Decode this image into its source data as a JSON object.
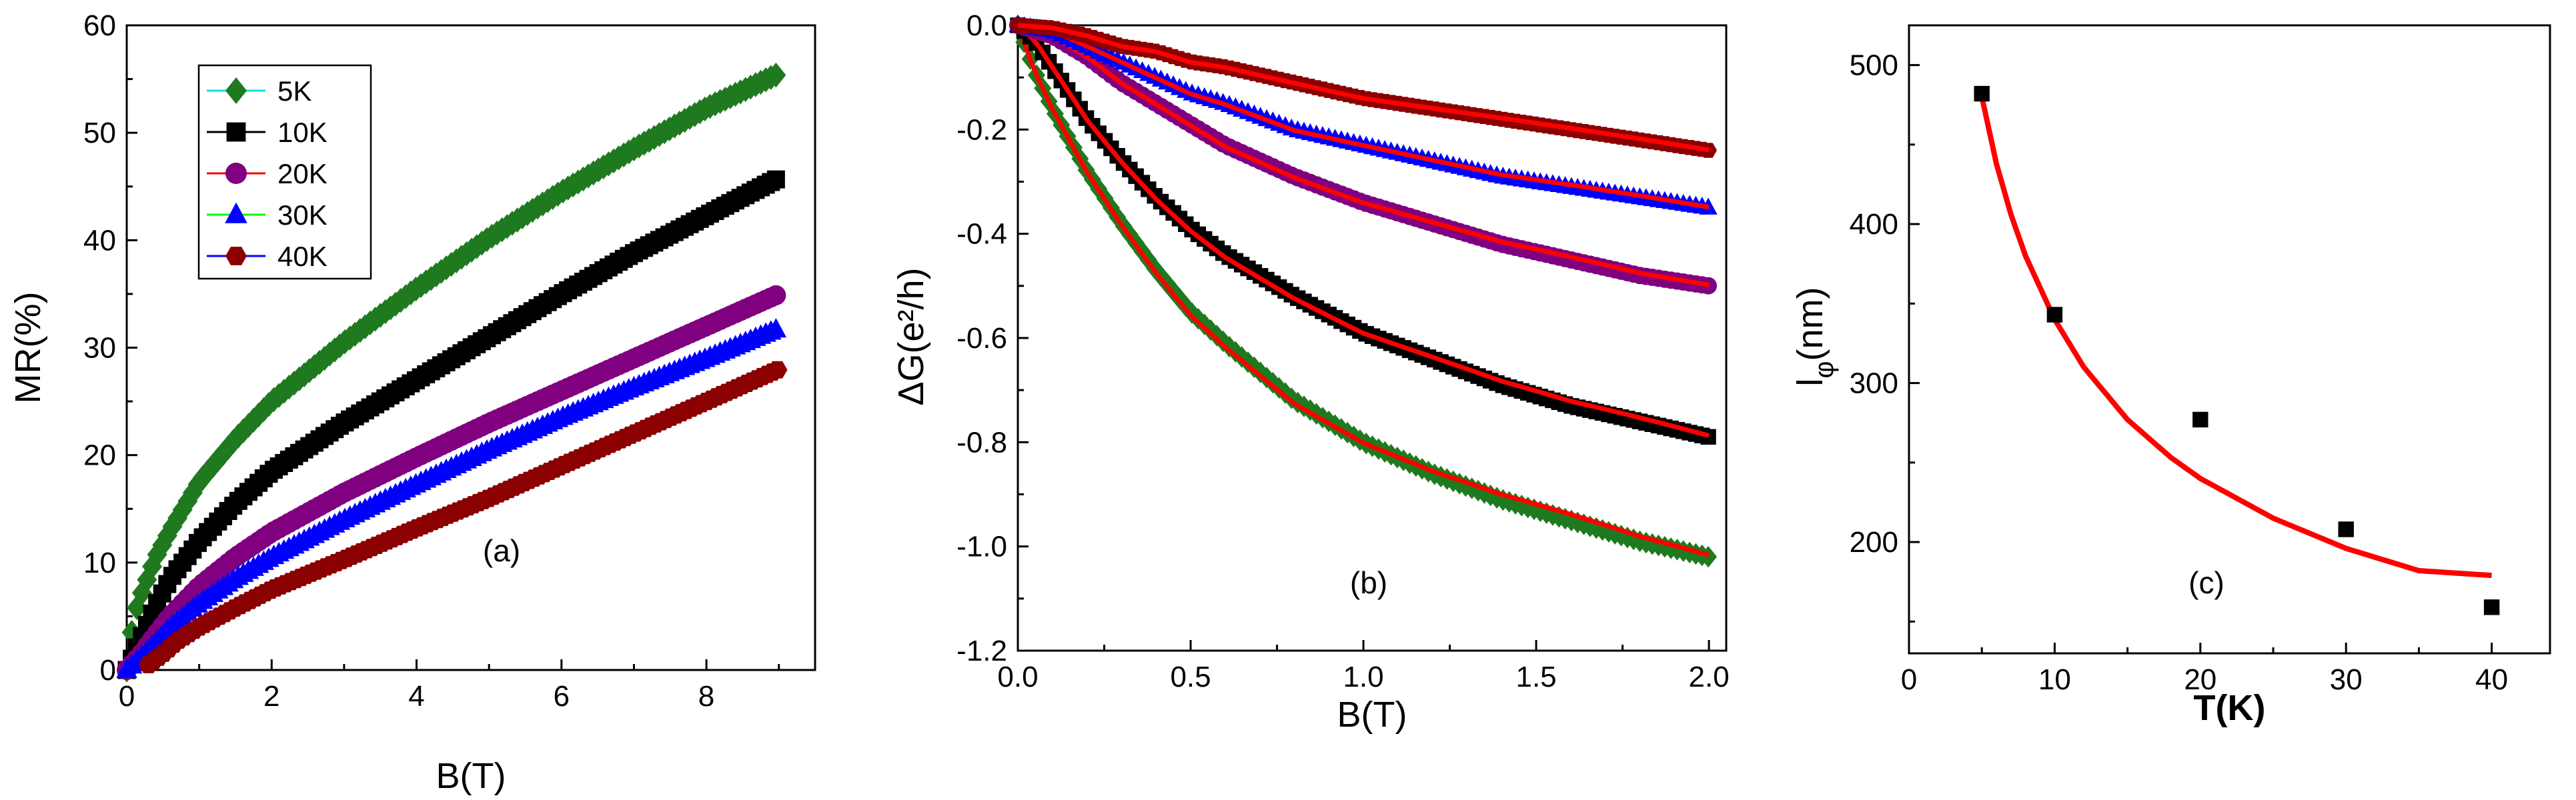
{
  "chart_data": [
    {
      "type": "scatter",
      "panel": "a",
      "tag": "(a)",
      "xlabel": "B(T)",
      "ylabel": "MR(%)",
      "xlim": [
        0,
        9.5
      ],
      "ylim": [
        0,
        60
      ],
      "xticks": [
        0,
        2,
        4,
        6,
        8
      ],
      "yticks": [
        0,
        10,
        20,
        30,
        40,
        50,
        60
      ],
      "legend_position": "top-left",
      "series": [
        {
          "name": "5K",
          "marker": "diamond",
          "color": "#1f7a1f",
          "line_color": "#00e5e5",
          "x": [
            0,
            0.1,
            0.2,
            0.4,
            0.6,
            1,
            1.5,
            2,
            3,
            4,
            5,
            6,
            7,
            8,
            9
          ],
          "y": [
            0,
            5,
            7,
            10.5,
            13,
            17.5,
            21.5,
            25,
            30.5,
            35.5,
            40.2,
            44.5,
            48.5,
            52.3,
            55.5
          ]
        },
        {
          "name": "10K",
          "marker": "square",
          "color": "#000000",
          "line_color": "#000000",
          "x": [
            0,
            0.2,
            0.4,
            0.6,
            1,
            1.5,
            2,
            3,
            4,
            5,
            6,
            7,
            8,
            9
          ],
          "y": [
            0,
            3,
            6,
            8.5,
            12,
            15.5,
            18.5,
            23,
            27,
            31,
            35,
            38.8,
            42.3,
            45.8
          ]
        },
        {
          "name": "20K",
          "marker": "circle",
          "color": "#800080",
          "line_color": "#ff0000",
          "x": [
            0,
            0.2,
            0.4,
            0.6,
            1,
            1.5,
            2,
            3,
            4,
            5,
            6,
            7,
            8,
            9
          ],
          "y": [
            0,
            1.5,
            3.3,
            5,
            7.8,
            10.5,
            12.8,
            16.5,
            19.8,
            23,
            26,
            29,
            32,
            35
          ]
        },
        {
          "name": "30K",
          "marker": "triangle",
          "color": "#0000ff",
          "line_color": "#00ff00",
          "x": [
            0,
            0.2,
            0.4,
            0.6,
            1,
            1.5,
            2,
            3,
            4,
            5,
            6,
            7,
            8,
            9
          ],
          "y": [
            0,
            1.2,
            2.6,
            4,
            6.2,
            8.5,
            10.5,
            14,
            17.3,
            20.5,
            23.5,
            26.3,
            29,
            31.8
          ]
        },
        {
          "name": "40K",
          "marker": "hexagon",
          "color": "#8b0000",
          "line_color": "#0000ff",
          "x": [
            0.3,
            0.5,
            0.7,
            1,
            1.5,
            2,
            3,
            4,
            5,
            6,
            7,
            8,
            9
          ],
          "y": [
            0.5,
            1.5,
            2.7,
            4,
            5.8,
            7.5,
            10.3,
            13.2,
            16,
            19,
            22,
            25,
            28
          ]
        }
      ]
    },
    {
      "type": "scatter",
      "panel": "b",
      "tag": "(b)",
      "xlabel": "B(T)",
      "ylabel": "ΔG(e²/h)",
      "xlim": [
        0,
        2.05
      ],
      "ylim": [
        -1.2,
        0
      ],
      "xticks": [
        "0.0",
        "0.5",
        "1.0",
        "1.5",
        "2.0"
      ],
      "yticks": [
        "0.0",
        "-0.2",
        "-0.4",
        "-0.6",
        "-0.8",
        "-1.0",
        "-1.2"
      ],
      "fit_color": "#ff0000",
      "series": [
        {
          "name": "5K",
          "marker": "diamond",
          "color": "#1f7a1f",
          "x": [
            0,
            0.05,
            0.1,
            0.15,
            0.2,
            0.3,
            0.4,
            0.5,
            0.6,
            0.8,
            1,
            1.2,
            1.4,
            1.6,
            1.8,
            2
          ],
          "y": [
            0,
            -0.09,
            -0.16,
            -0.22,
            -0.28,
            -0.38,
            -0.47,
            -0.55,
            -0.61,
            -0.72,
            -0.8,
            -0.86,
            -0.91,
            -0.95,
            -0.99,
            -1.02
          ]
        },
        {
          "name": "10K",
          "marker": "square",
          "color": "#000000",
          "x": [
            0,
            0.05,
            0.1,
            0.15,
            0.2,
            0.3,
            0.4,
            0.5,
            0.6,
            0.8,
            1,
            1.2,
            1.4,
            1.6,
            1.8,
            2
          ],
          "y": [
            0,
            -0.03,
            -0.08,
            -0.13,
            -0.18,
            -0.26,
            -0.33,
            -0.39,
            -0.44,
            -0.52,
            -0.59,
            -0.64,
            -0.69,
            -0.73,
            -0.76,
            -0.79
          ]
        },
        {
          "name": "20K",
          "marker": "circle",
          "color": "#800080",
          "x": [
            0,
            0.1,
            0.2,
            0.3,
            0.4,
            0.5,
            0.6,
            0.8,
            1,
            1.2,
            1.4,
            1.6,
            1.8,
            2
          ],
          "y": [
            0,
            -0.02,
            -0.06,
            -0.11,
            -0.15,
            -0.19,
            -0.23,
            -0.29,
            -0.34,
            -0.38,
            -0.42,
            -0.45,
            -0.48,
            -0.5
          ]
        },
        {
          "name": "30K",
          "marker": "triangle",
          "color": "#0000ff",
          "x": [
            0,
            0.1,
            0.2,
            0.3,
            0.4,
            0.5,
            0.6,
            0.8,
            1,
            1.2,
            1.4,
            1.6,
            1.8,
            2
          ],
          "y": [
            0,
            -0.01,
            -0.04,
            -0.07,
            -0.1,
            -0.13,
            -0.15,
            -0.2,
            -0.23,
            -0.26,
            -0.29,
            -0.31,
            -0.33,
            -0.35
          ]
        },
        {
          "name": "40K",
          "marker": "hexagon",
          "color": "#8b0000",
          "x": [
            0,
            0.1,
            0.2,
            0.3,
            0.4,
            0.5,
            0.6,
            0.8,
            1,
            1.2,
            1.4,
            1.6,
            1.8,
            2
          ],
          "y": [
            0,
            -0.005,
            -0.02,
            -0.04,
            -0.05,
            -0.07,
            -0.08,
            -0.11,
            -0.14,
            -0.16,
            -0.18,
            -0.2,
            -0.22,
            -0.24
          ]
        }
      ]
    },
    {
      "type": "scatter",
      "panel": "c",
      "tag": "(c)",
      "xlabel": "T(K)",
      "ylabel_main": "l",
      "ylabel_sub": "φ",
      "ylabel_unit": "(nm)",
      "xlim": [
        0,
        44
      ],
      "ylim": [
        130,
        525
      ],
      "xticks": [
        0,
        10,
        20,
        30,
        40
      ],
      "yticks": [
        200,
        300,
        400,
        500
      ],
      "points": {
        "color": "#000000",
        "x": [
          5,
          10,
          20,
          30,
          40
        ],
        "y": [
          482,
          343,
          277,
          208,
          159
        ]
      },
      "fit": {
        "color": "#ff0000",
        "x": [
          5,
          6,
          7,
          8,
          10,
          12,
          15,
          18,
          20,
          25,
          30,
          35,
          40
        ],
        "y": [
          480,
          438,
          406,
          380,
          340,
          310,
          277,
          253,
          240,
          215,
          196,
          182,
          179
        ]
      }
    }
  ]
}
